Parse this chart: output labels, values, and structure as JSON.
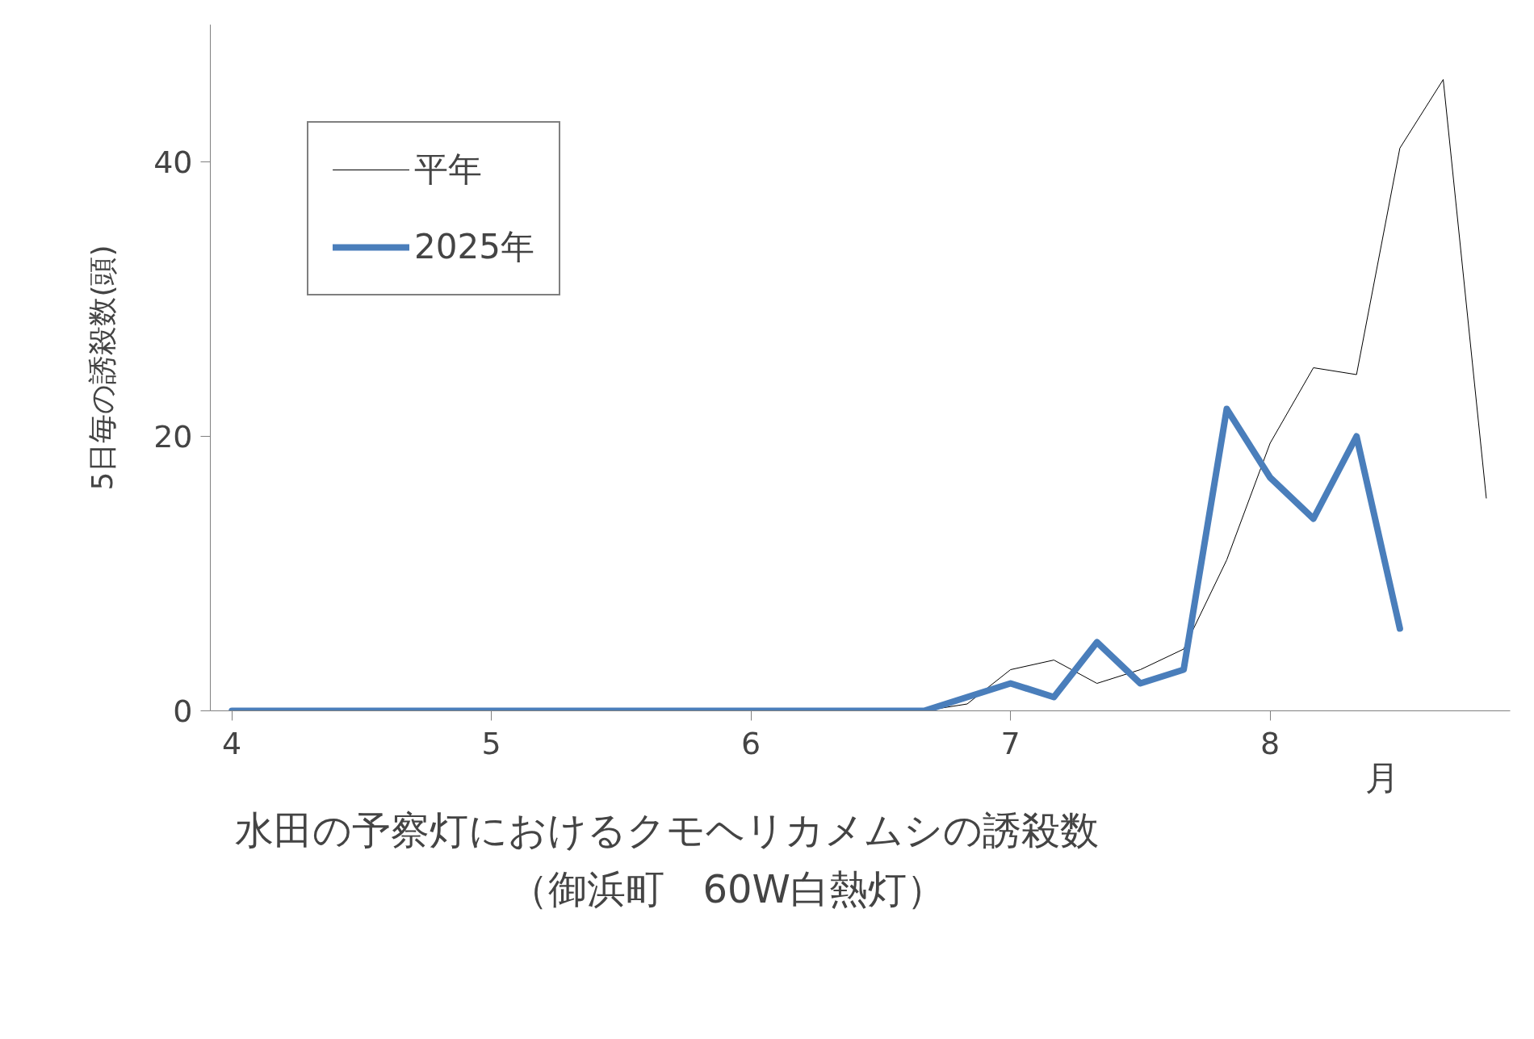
{
  "chart_data": {
    "type": "line",
    "title": "水田の予察灯におけるクモヘリカメムシの誘殺数",
    "subtitle": "（御浜町　60W白熱灯）",
    "xlabel": "月",
    "ylabel": "5日毎の誘殺数(頭)",
    "x": [
      4.0,
      4.167,
      4.333,
      4.5,
      4.667,
      4.833,
      5.0,
      5.167,
      5.333,
      5.5,
      5.667,
      5.833,
      6.0,
      6.167,
      6.333,
      6.5,
      6.667,
      6.833,
      7.0,
      7.167,
      7.333,
      7.5,
      7.667,
      7.833,
      8.0,
      8.167,
      8.333,
      8.5,
      8.667,
      8.833
    ],
    "series": [
      {
        "name": "平年",
        "color": "#000000",
        "values": [
          0,
          0,
          0,
          0,
          0,
          0,
          0,
          0,
          0,
          0,
          0,
          0,
          0,
          0,
          0,
          0,
          0,
          0.5,
          3,
          3.7,
          2,
          3,
          4.5,
          11,
          19.5,
          25,
          24.5,
          41,
          46,
          15.5
        ]
      },
      {
        "name": "2025年",
        "color": "#4a7ebb",
        "values": [
          0,
          0,
          0,
          0,
          0,
          0,
          0,
          0,
          0,
          0,
          0,
          0,
          0,
          0,
          0,
          0,
          0,
          1,
          2,
          1,
          5,
          2,
          3,
          22,
          17,
          14,
          20,
          6,
          null,
          null
        ]
      }
    ],
    "xlim": [
      3.917,
      8.925
    ],
    "ylim": [
      0,
      50
    ],
    "xticks": [
      4,
      5,
      6,
      7,
      8
    ],
    "yticks": [
      0,
      20,
      40
    ],
    "grid": false,
    "legend": "top left",
    "marker": "none",
    "line_style": "solid"
  }
}
